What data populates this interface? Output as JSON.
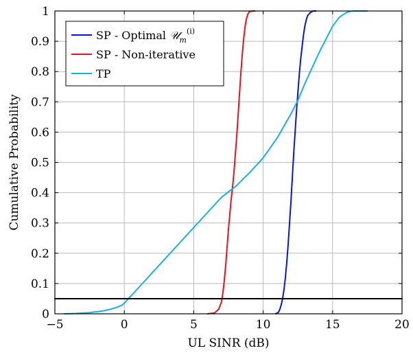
{
  "chart_data": {
    "type": "line",
    "xlabel": "UL SINR (dB)",
    "ylabel": "Cumulative Probability",
    "xlim": [
      -5,
      20
    ],
    "ylim": [
      0,
      1
    ],
    "xticks": [
      -5,
      0,
      5,
      10,
      15,
      20
    ],
    "xtick_labels": [
      "−5",
      "0",
      "5",
      "10",
      "15",
      "20"
    ],
    "yticks": [
      0,
      0.1,
      0.2,
      0.3,
      0.4,
      0.5,
      0.6,
      0.7,
      0.8,
      0.9,
      1
    ],
    "ytick_labels": [
      "0",
      "0.1",
      "0.2",
      "0.3",
      "0.4",
      "0.5",
      "0.6",
      "0.7",
      "0.8",
      "0.9",
      "1"
    ],
    "grid": true,
    "legend_position": "top-left",
    "series": [
      {
        "name": "SP - Optimal 𝒰ₘ⁽ⁱ⁾",
        "legend_text": "SP - Optimal ",
        "legend_math": "𝒰",
        "legend_sub": "m",
        "legend_sup": "(i)",
        "color": "#0a14d4",
        "x": [
          10.9,
          11.1,
          11.2,
          11.3,
          11.4,
          11.5,
          11.6,
          11.7,
          11.8,
          11.9,
          12.0,
          12.1,
          12.2,
          12.3,
          12.4,
          12.5,
          12.6,
          12.7,
          12.8,
          12.9,
          13.0,
          13.1,
          13.2,
          13.4,
          13.6,
          13.8
        ],
        "y": [
          0.0,
          0.005,
          0.015,
          0.03,
          0.05,
          0.08,
          0.12,
          0.17,
          0.23,
          0.3,
          0.37,
          0.45,
          0.53,
          0.6,
          0.67,
          0.73,
          0.79,
          0.84,
          0.88,
          0.92,
          0.95,
          0.97,
          0.985,
          0.995,
          1.0,
          1.0
        ]
      },
      {
        "name": "SP - Non-iterative",
        "color": "#e3141b",
        "x": [
          6.0,
          6.5,
          6.8,
          7.0,
          7.1,
          7.2,
          7.3,
          7.4,
          7.5,
          7.6,
          7.7,
          7.8,
          7.9,
          8.0,
          8.1,
          8.2,
          8.3,
          8.4,
          8.5,
          8.6,
          8.7,
          8.8,
          8.9,
          9.0,
          9.2,
          9.4
        ],
        "y": [
          0.0,
          0.003,
          0.015,
          0.04,
          0.07,
          0.11,
          0.16,
          0.22,
          0.28,
          0.33,
          0.38,
          0.42,
          0.47,
          0.53,
          0.59,
          0.66,
          0.73,
          0.8,
          0.86,
          0.91,
          0.95,
          0.975,
          0.99,
          0.997,
          1.0,
          1.0
        ]
      },
      {
        "name": "TP",
        "color": "#1aaee3",
        "x": [
          -4.3,
          -3.5,
          -2.5,
          -1.5,
          -1.0,
          -0.5,
          -0.2,
          0.0,
          0.5,
          1.0,
          1.5,
          2.0,
          3.0,
          4.0,
          5.0,
          6.0,
          7.0,
          8.0,
          9.0,
          10.0,
          11.0,
          12.0,
          12.5,
          13.0,
          14.0,
          15.0,
          15.5,
          16.0,
          16.3,
          16.6,
          17.0,
          17.5
        ],
        "y": [
          0.0,
          0.001,
          0.004,
          0.01,
          0.015,
          0.022,
          0.028,
          0.035,
          0.06,
          0.085,
          0.11,
          0.135,
          0.185,
          0.235,
          0.285,
          0.335,
          0.385,
          0.42,
          0.465,
          0.515,
          0.58,
          0.66,
          0.705,
          0.76,
          0.86,
          0.95,
          0.98,
          0.995,
          0.999,
          1.0,
          1.0,
          1.0
        ]
      },
      {
        "name": "",
        "color": "#000000",
        "x": [
          -5,
          20
        ],
        "y": [
          0.05,
          0.05
        ]
      }
    ]
  }
}
